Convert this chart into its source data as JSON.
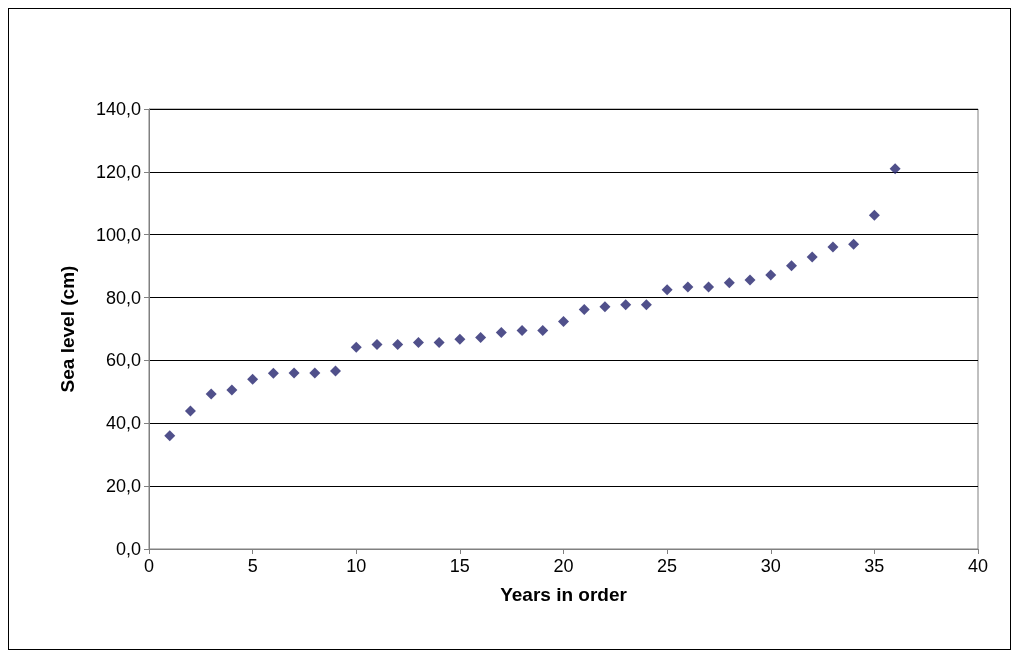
{
  "chart_data": {
    "type": "scatter",
    "xlabel": "Years in order",
    "ylabel": "Sea level (cm)",
    "x": [
      1,
      2,
      3,
      4,
      5,
      6,
      7,
      8,
      9,
      10,
      11,
      12,
      13,
      14,
      15,
      16,
      17,
      18,
      19,
      20,
      21,
      22,
      23,
      24,
      25,
      26,
      27,
      28,
      29,
      30,
      31,
      32,
      33,
      34,
      35,
      36
    ],
    "values": [
      36.0,
      43.9,
      49.3,
      50.6,
      54.0,
      55.9,
      56.0,
      56.0,
      56.6,
      64.2,
      65.1,
      65.1,
      65.7,
      65.7,
      66.7,
      67.3,
      68.9,
      69.5,
      69.5,
      72.4,
      76.2,
      77.1,
      77.7,
      77.7,
      82.5,
      83.4,
      83.4,
      84.7,
      85.6,
      87.2,
      90.1,
      92.9,
      96.1,
      97.0,
      106.2,
      121.0
    ],
    "color": "#24246e",
    "marker": "diamond",
    "xlim": [
      0,
      40
    ],
    "xticks": [
      0,
      5,
      10,
      15,
      20,
      25,
      30,
      35,
      40
    ],
    "ylim": [
      0,
      140
    ],
    "yticks": [
      {
        "value": 0,
        "label": "0,0"
      },
      {
        "value": 20,
        "label": "20,0"
      },
      {
        "value": 40,
        "label": "40,0"
      },
      {
        "value": 60,
        "label": "60,0"
      },
      {
        "value": 80,
        "label": "80,0"
      },
      {
        "value": 100,
        "label": "100,0"
      },
      {
        "value": 120,
        "label": "120,0"
      },
      {
        "value": 140,
        "label": "140,0"
      }
    ],
    "grid": "y"
  }
}
